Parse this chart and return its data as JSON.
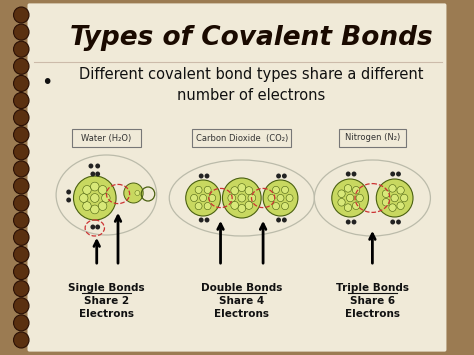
{
  "title": "Types of Covalent Bonds",
  "subtitle_bullet": "•",
  "subtitle": "Different covalent bond types share a different\nnumber of electrons",
  "bg_outer_color": "#9b7b52",
  "body_bg": "#f0ead8",
  "title_color": "#1a0a00",
  "subtitle_color": "#111111",
  "boxes": [
    {
      "label": "Water (H₂O)"
    },
    {
      "label": "Carbon Dioxide  (CO₂)"
    },
    {
      "label": "Nitrogen (N₂)"
    }
  ],
  "bond_labels": [
    {
      "line1": "Single Bonds",
      "line2": "Share 2",
      "line3": "Electrons"
    },
    {
      "line1": "Double Bonds",
      "line2": "Share 4",
      "line3": "Electrons"
    },
    {
      "line1": "Triple Bonds",
      "line2": "Share 6",
      "line3": "Electrons"
    }
  ],
  "spiral_color": "#5a3010",
  "box_edge_color": "#777777",
  "atom_body_color": "#c8d860",
  "atom_edge_color": "#4a6010",
  "nucleon_color": "#d8e878",
  "nucleon_edge": "#4a6010",
  "electron_dot_color": "#222222",
  "bond_circle_color": "#cc3333",
  "orbit_color": "#bbbbaa",
  "arrow_color": "#000000"
}
